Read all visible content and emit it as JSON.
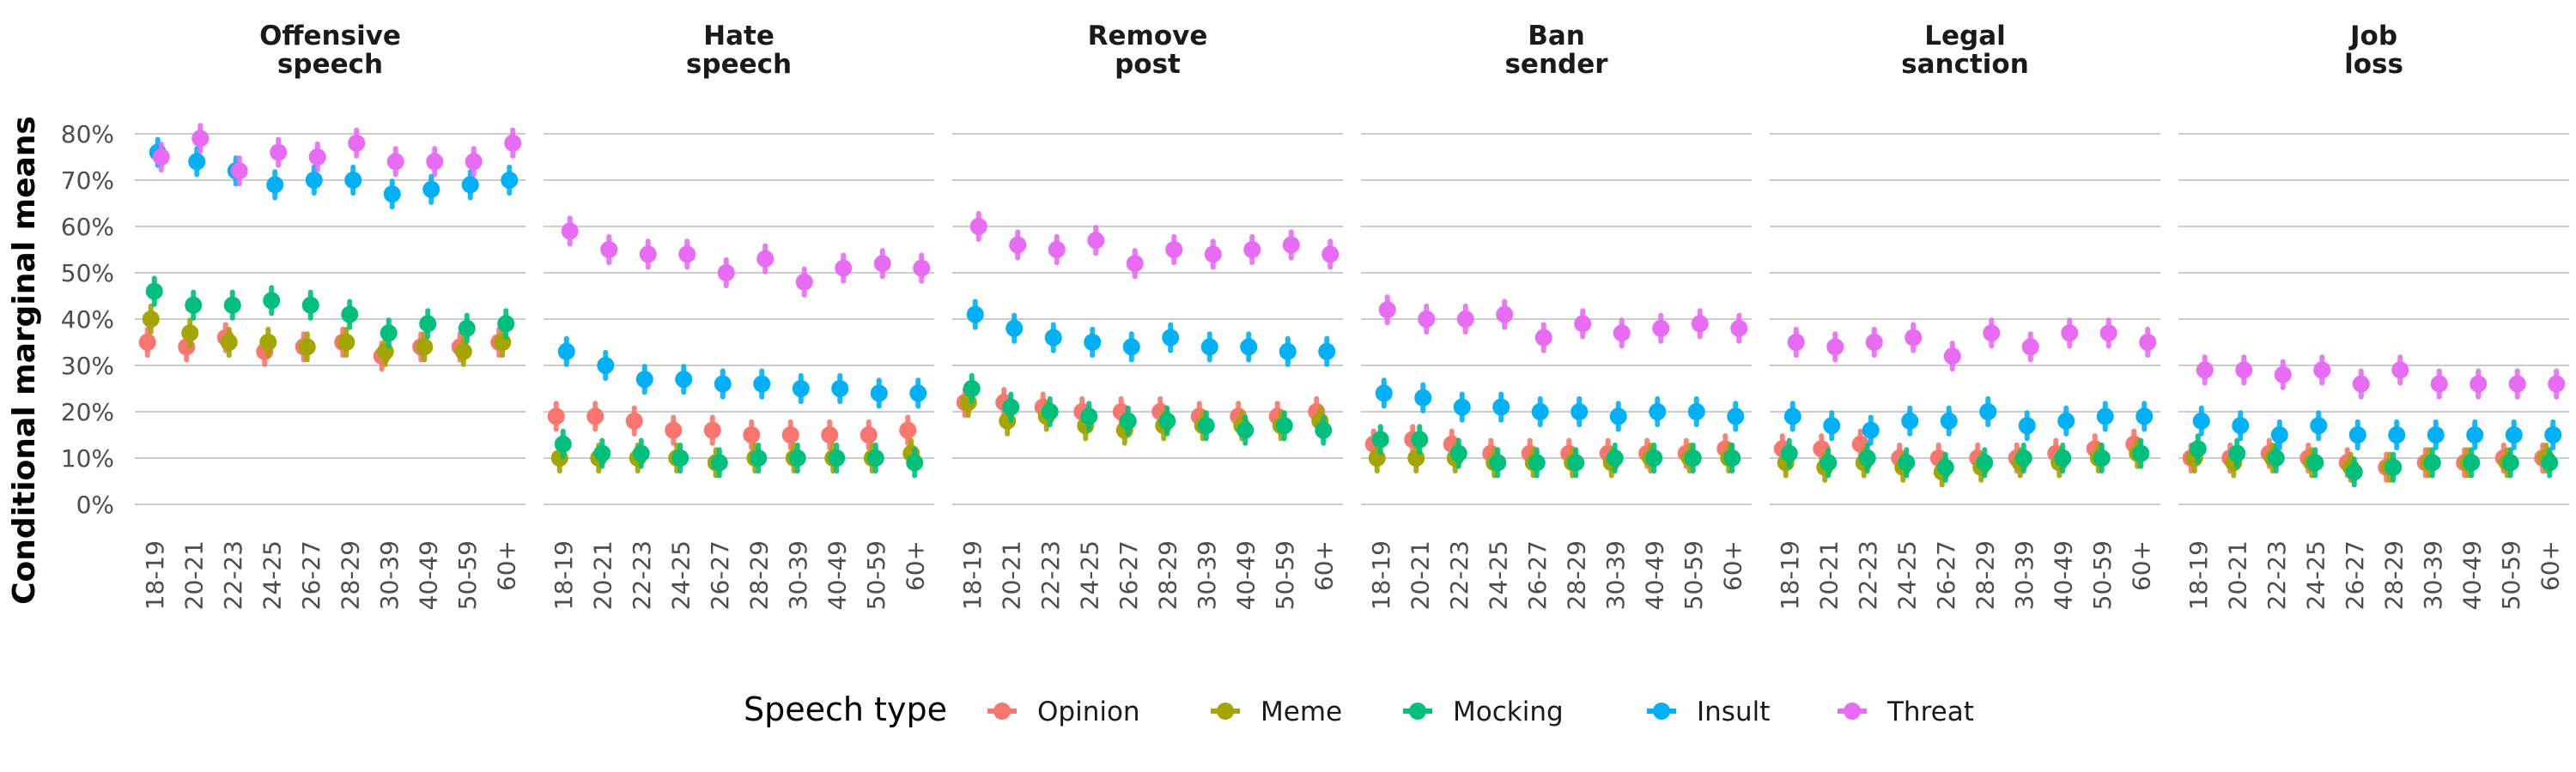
{
  "chart_data": {
    "type": "scatter",
    "title": "",
    "ylabel": "Conditional marginal means",
    "xlabel": "",
    "ylim": [
      0,
      0.85
    ],
    "yticks": [
      0,
      0.1,
      0.2,
      0.3,
      0.4,
      0.5,
      0.6,
      0.7,
      0.8
    ],
    "ytick_labels": [
      "0%",
      "10%",
      "20%",
      "30%",
      "40%",
      "50%",
      "60%",
      "70%",
      "80%"
    ],
    "grid": true,
    "legend_position": "bottom",
    "legend_title": "Speech type",
    "categories": [
      "18-19",
      "20-21",
      "22-23",
      "24-25",
      "26-27",
      "28-29",
      "30-39",
      "40-49",
      "50-59",
      "60+"
    ],
    "series_styles": [
      {
        "name": "Opinion",
        "color": "#F8766D"
      },
      {
        "name": "Meme",
        "color": "#A3A500"
      },
      {
        "name": "Mocking",
        "color": "#00BF7D"
      },
      {
        "name": "Insult",
        "color": "#00B0F6"
      },
      {
        "name": "Threat",
        "color": "#E76BF3"
      }
    ],
    "panels": [
      {
        "title_lines": [
          "Offensive",
          "speech"
        ],
        "series": [
          {
            "name": "Opinion",
            "values": [
              0.35,
              0.34,
              0.36,
              0.33,
              0.34,
              0.35,
              0.32,
              0.34,
              0.34,
              0.35
            ]
          },
          {
            "name": "Meme",
            "values": [
              0.4,
              0.37,
              0.35,
              0.35,
              0.34,
              0.35,
              0.33,
              0.34,
              0.33,
              0.35
            ]
          },
          {
            "name": "Mocking",
            "values": [
              0.46,
              0.43,
              0.43,
              0.44,
              0.43,
              0.41,
              0.37,
              0.39,
              0.38,
              0.39
            ]
          },
          {
            "name": "Insult",
            "values": [
              0.76,
              0.74,
              0.72,
              0.69,
              0.7,
              0.7,
              0.67,
              0.68,
              0.69,
              0.7
            ]
          },
          {
            "name": "Threat",
            "values": [
              0.75,
              0.79,
              0.72,
              0.76,
              0.75,
              0.78,
              0.74,
              0.74,
              0.74,
              0.78
            ]
          }
        ]
      },
      {
        "title_lines": [
          "Hate",
          "speech"
        ],
        "series": [
          {
            "name": "Opinion",
            "values": [
              0.19,
              0.19,
              0.18,
              0.16,
              0.16,
              0.15,
              0.15,
              0.15,
              0.15,
              0.16
            ]
          },
          {
            "name": "Meme",
            "values": [
              0.1,
              0.1,
              0.1,
              0.1,
              0.09,
              0.1,
              0.1,
              0.1,
              0.1,
              0.11
            ]
          },
          {
            "name": "Mocking",
            "values": [
              0.13,
              0.11,
              0.11,
              0.1,
              0.09,
              0.1,
              0.1,
              0.1,
              0.1,
              0.09
            ]
          },
          {
            "name": "Insult",
            "values": [
              0.33,
              0.3,
              0.27,
              0.27,
              0.26,
              0.26,
              0.25,
              0.25,
              0.24,
              0.24
            ]
          },
          {
            "name": "Threat",
            "values": [
              0.59,
              0.55,
              0.54,
              0.54,
              0.5,
              0.53,
              0.48,
              0.51,
              0.52,
              0.51
            ]
          }
        ]
      },
      {
        "title_lines": [
          "Remove",
          "post"
        ],
        "series": [
          {
            "name": "Opinion",
            "values": [
              0.22,
              0.22,
              0.21,
              0.2,
              0.2,
              0.2,
              0.19,
              0.19,
              0.19,
              0.2
            ]
          },
          {
            "name": "Meme",
            "values": [
              0.22,
              0.18,
              0.19,
              0.17,
              0.16,
              0.17,
              0.17,
              0.17,
              0.17,
              0.18
            ]
          },
          {
            "name": "Mocking",
            "values": [
              0.25,
              0.21,
              0.2,
              0.19,
              0.18,
              0.18,
              0.17,
              0.16,
              0.17,
              0.16
            ]
          },
          {
            "name": "Insult",
            "values": [
              0.41,
              0.38,
              0.36,
              0.35,
              0.34,
              0.36,
              0.34,
              0.34,
              0.33,
              0.33
            ]
          },
          {
            "name": "Threat",
            "values": [
              0.6,
              0.56,
              0.55,
              0.57,
              0.52,
              0.55,
              0.54,
              0.55,
              0.56,
              0.54
            ]
          }
        ]
      },
      {
        "title_lines": [
          "Ban",
          "sender"
        ],
        "series": [
          {
            "name": "Opinion",
            "values": [
              0.13,
              0.14,
              0.13,
              0.11,
              0.11,
              0.11,
              0.11,
              0.11,
              0.11,
              0.12
            ]
          },
          {
            "name": "Meme",
            "values": [
              0.1,
              0.1,
              0.1,
              0.09,
              0.09,
              0.09,
              0.09,
              0.1,
              0.1,
              0.1
            ]
          },
          {
            "name": "Mocking",
            "values": [
              0.14,
              0.14,
              0.11,
              0.09,
              0.09,
              0.09,
              0.1,
              0.1,
              0.1,
              0.1
            ]
          },
          {
            "name": "Insult",
            "values": [
              0.24,
              0.23,
              0.21,
              0.21,
              0.2,
              0.2,
              0.19,
              0.2,
              0.2,
              0.19
            ]
          },
          {
            "name": "Threat",
            "values": [
              0.42,
              0.4,
              0.4,
              0.41,
              0.36,
              0.39,
              0.37,
              0.38,
              0.39,
              0.38
            ]
          }
        ]
      },
      {
        "title_lines": [
          "Legal",
          "sanction"
        ],
        "series": [
          {
            "name": "Opinion",
            "values": [
              0.12,
              0.12,
              0.13,
              0.1,
              0.1,
              0.1,
              0.1,
              0.11,
              0.12,
              0.13
            ]
          },
          {
            "name": "Meme",
            "values": [
              0.09,
              0.08,
              0.09,
              0.08,
              0.07,
              0.08,
              0.09,
              0.09,
              0.1,
              0.11
            ]
          },
          {
            "name": "Mocking",
            "values": [
              0.11,
              0.09,
              0.1,
              0.09,
              0.08,
              0.09,
              0.1,
              0.1,
              0.1,
              0.11
            ]
          },
          {
            "name": "Insult",
            "values": [
              0.19,
              0.17,
              0.16,
              0.18,
              0.18,
              0.2,
              0.17,
              0.18,
              0.19,
              0.19
            ]
          },
          {
            "name": "Threat",
            "values": [
              0.35,
              0.34,
              0.35,
              0.36,
              0.32,
              0.37,
              0.34,
              0.37,
              0.37,
              0.35
            ]
          }
        ]
      },
      {
        "title_lines": [
          "Job",
          "loss"
        ],
        "series": [
          {
            "name": "Opinion",
            "values": [
              0.1,
              0.1,
              0.11,
              0.1,
              0.09,
              0.08,
              0.09,
              0.09,
              0.1,
              0.1
            ]
          },
          {
            "name": "Meme",
            "values": [
              0.1,
              0.09,
              0.1,
              0.09,
              0.08,
              0.08,
              0.09,
              0.09,
              0.09,
              0.1
            ]
          },
          {
            "name": "Mocking",
            "values": [
              0.12,
              0.11,
              0.1,
              0.09,
              0.07,
              0.08,
              0.09,
              0.09,
              0.09,
              0.09
            ]
          },
          {
            "name": "Insult",
            "values": [
              0.18,
              0.17,
              0.15,
              0.17,
              0.15,
              0.15,
              0.15,
              0.15,
              0.15,
              0.15
            ]
          },
          {
            "name": "Threat",
            "values": [
              0.29,
              0.29,
              0.28,
              0.29,
              0.26,
              0.29,
              0.26,
              0.26,
              0.26,
              0.26
            ]
          }
        ]
      }
    ]
  }
}
